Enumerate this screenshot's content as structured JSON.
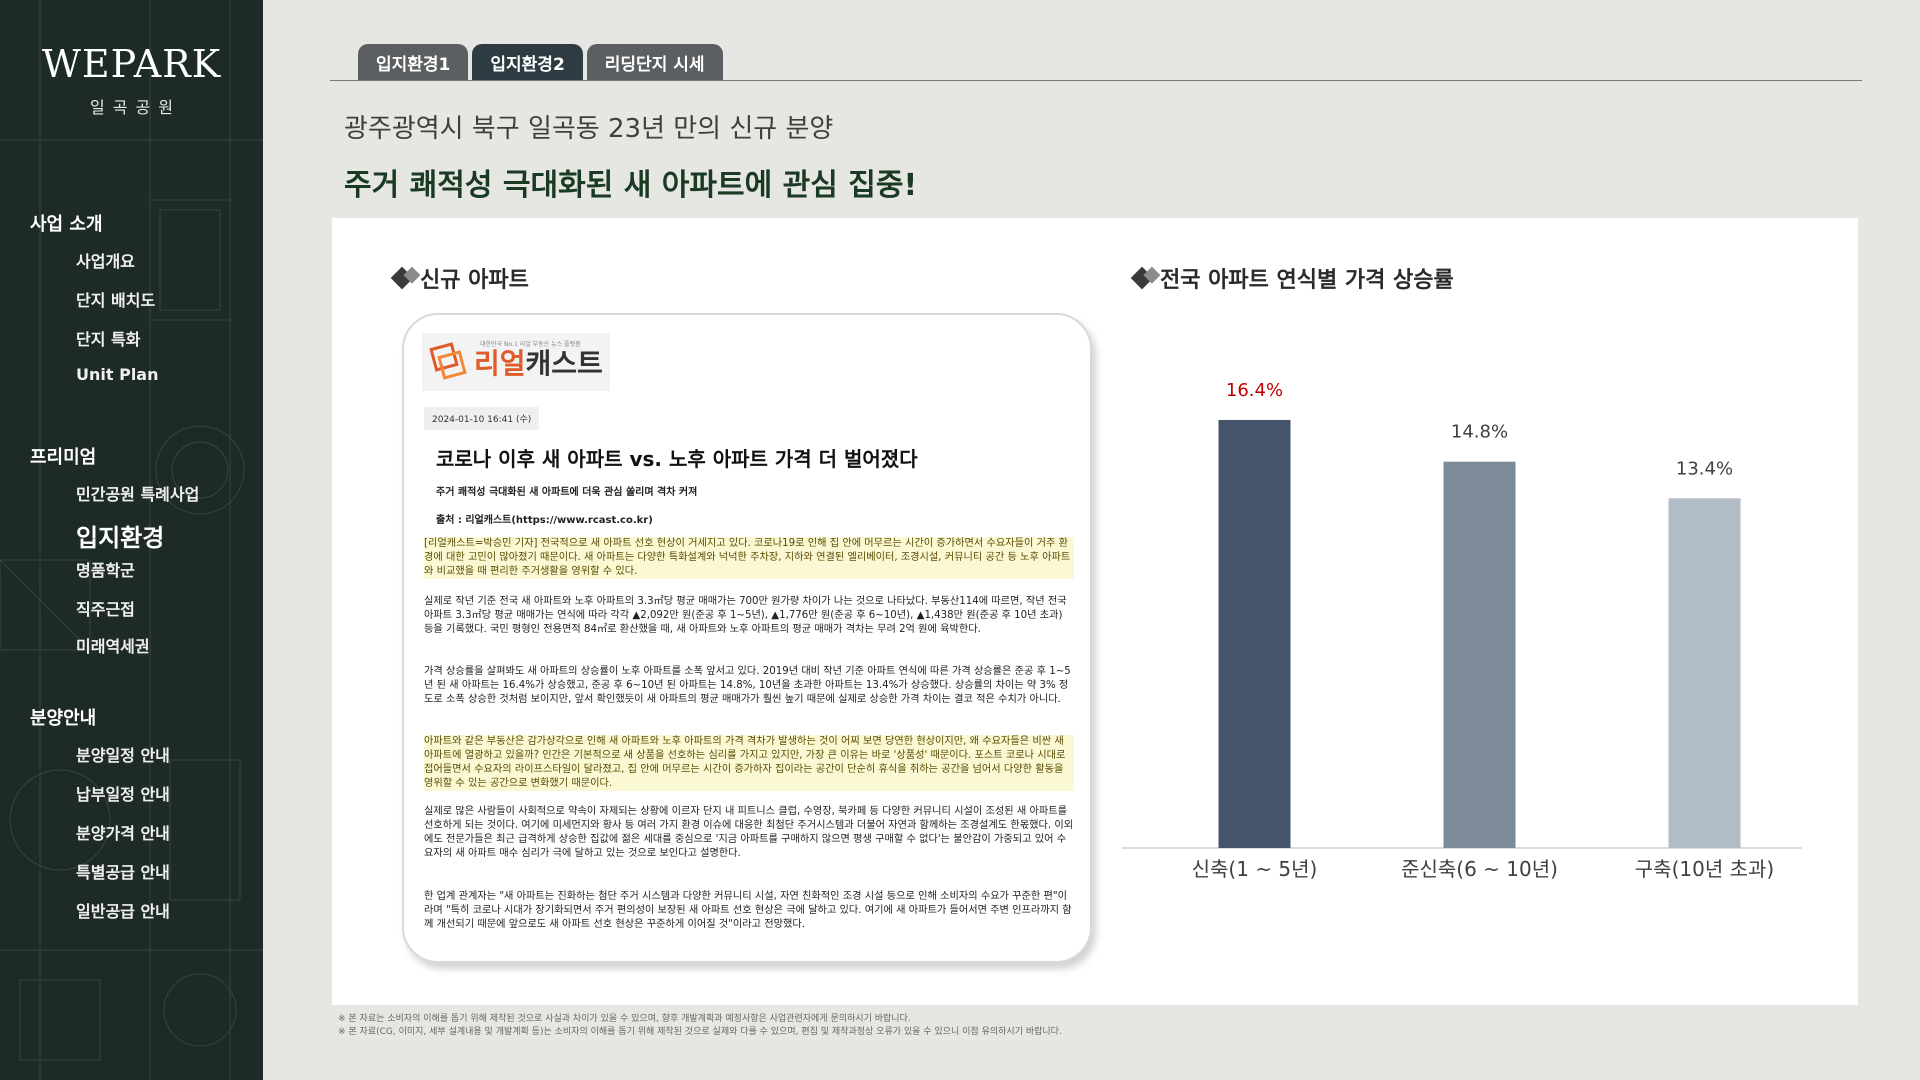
{
  "sidebar": {
    "brand": "WEPARK",
    "brand_sub": "일곡공원",
    "sections": [
      {
        "title": "사업 소개",
        "items": [
          "사업개요",
          "단지 배치도",
          "단지 특화",
          "Unit Plan"
        ]
      },
      {
        "title": "프리미엄",
        "items": [
          "민간공원 특례사업",
          "입지환경",
          "명품학군",
          "직주근접",
          "미래역세권"
        ]
      },
      {
        "title": "분양안내",
        "items": [
          "분양일정 안내",
          "납부일정 안내",
          "분양가격 안내",
          "특별공급 안내",
          "일반공급 안내"
        ]
      }
    ],
    "active_item": "입지환경"
  },
  "tabs": [
    {
      "label": "입지환경1",
      "active": false
    },
    {
      "label": "입지환경2",
      "active": true
    },
    {
      "label": "리딩단지 시세",
      "active": false
    }
  ],
  "headline": {
    "line1": "광주광역시 북구 일곡동 23년 만의 신규 분양",
    "line2": "주거 쾌적성 극대화된 새 아파트에 관심 집중!"
  },
  "left_section": {
    "title": "신규 아파트",
    "article": {
      "logo_text_a": "리얼",
      "logo_text_b": "캐스트",
      "logo_tagline": "대한민국 No.1 리얼 부동산 뉴스 플랫폼",
      "date": "2024-01-10 16:41 (수)",
      "title": "코로나 이후 새 아파트 vs. 노후 아파트 가격 더 벌어졌다",
      "subtitle": "주거 쾌적성 극대화된 새 아파트에 더욱 관심 쏠리며 격차 커져",
      "source": "출처 : 리얼캐스트(https://www.rcast.co.kr)",
      "paragraphs": [
        {
          "text": "[리얼캐스트=박승민 기자] 전국적으로 새 아파트 선호 현상이 거세지고 있다. 코로나19로 인해 집 안에 머무르는 시간이 증가하면서 수요자들이 거주 환경에 대한 고민이 많아졌기 때문이다. 새 아파트는 다양한 특화설계와 넉넉한 주차장, 지하와 연결된 엘리베이터, 조경시설, 커뮤니티 공간 등 노후 아파트와 비교했을 때 편리한 주거생활을 영위할 수 있다.",
          "highlight": true
        },
        {
          "text": "실제로 작년 기준 전국 새 아파트와 노후 아파트의 3.3㎡당 평균 매매가는 700만 원가량 차이가 나는 것으로 나타났다. 부동산114에 따르면, 작년 전국 아파트 3.3㎡당 평균 매매가는 연식에 따라 각각 ▲2,092만 원(준공 후 1~5년), ▲1,776만 원(준공 후 6~10년), ▲1,438만 원(준공 후 10년 초과) 등을 기록했다. 국민 평형인 전용면적 84㎡로 환산했을 때, 새 아파트와 노후 아파트의 평균 매매가 격차는 무려 2억 원에 육박한다.",
          "highlight": false
        },
        {
          "text": "가격 상승률을 살펴봐도 새 아파트의 상승률이 노후 아파트를 소폭 앞서고 있다. 2019년 대비 작년 기준 아파트 연식에 따른 가격 상승률은 준공 후 1~5년 된 새 아파트는 16.4%가 상승했고, 준공 후 6~10년 된 아파트는 14.8%, 10년을 초과한 아파트는 13.4%가 상승했다. 상승률의 차이는 약 3% 정도로 소폭 상승한 것처럼 보이지만, 앞서 확인했듯이 새 아파트의 평균 매매가가 훨씬 높기 때문에 실제로 상승한 가격 차이는 결코 적은 수치가 아니다.",
          "highlight": false
        },
        {
          "text": "아파트와 같은 부동산은 감가상각으로 인해 새 아파트와 노후 아파트의 가격 격차가 발생하는 것이 어찌 보면 당연한 현상이지만, 왜 수요자들은 비싼 새 아파트에 열광하고 있을까? 인간은 기본적으로 새 상품을 선호하는 심리를 가지고 있지만, 가장 큰 이유는 바로 '상품성' 때문이다. 포스트 코로나 시대로 접어들면서 수요자의 라이프스타일이 달라졌고, 집 안에 머무르는 시간이 증가하자 집이라는 공간이 단순히 휴식을 취하는 공간을 넘어서 다양한 활동을 영위할 수 있는 공간으로 변화했기 때문이다.",
          "highlight": true
        },
        {
          "text": "실제로 많은 사람들이 사회적으로 약속이 자제되는 상황에 이르자 단지 내 피트니스 클럽, 수영장, 북카페 등 다양한 커뮤니티 시설이 조성된 새 아파트를 선호하게 되는 것이다. 여기에 미세먼지와 황사 등 여러 가지 환경 이슈에 대응한 최첨단 주거시스템과 더불어 자연과 함께하는 조경설계도 한몫했다. 이외에도 전문가들은 최근 급격하게 상승한 집값에 젊은 세대를 중심으로 '지금 아파트를 구매하지 않으면 평생 구매할 수 없다'는 불안감이 가중되고 있어 수요자의 새 아파트 매수 심리가 극에 달하고 있는 것으로 보인다고 설명한다.",
          "highlight": false
        },
        {
          "text": "한 업계 관계자는 \"새 아파트는 진화하는 첨단 주거 시스템과 다양한 커뮤니티 시설, 자연 친화적인 조경 시설 등으로 인해 소비자의 수요가 꾸준한 편\"이라며 \"특히 코로나 시대가 장기화되면서 주거 편의성이 보장된 새 아파트 선호 현상은 극에 달하고 있다. 여기에 새 아파트가 들어서면 주변 인프라까지 함께 개선되기 때문에 앞으로도 새 아파트 선호 현상은 꾸준하게 이어질 것\"이라고 전망했다.",
          "highlight": false
        }
      ]
    }
  },
  "right_section": {
    "title": "전국 아파트 연식별 가격 상승률"
  },
  "chart_data": {
    "type": "bar",
    "title": "전국 아파트 연식별 가격 상승률",
    "categories": [
      "신축(1 ~ 5년)",
      "준신축(6 ~ 10년)",
      "구축(10년 초과)"
    ],
    "values": [
      16.4,
      14.8,
      13.4
    ],
    "value_labels": [
      "16.4%",
      "14.8%",
      "13.4%"
    ],
    "colors": [
      "#44546a",
      "#7d8a99",
      "#b1bcc7"
    ],
    "label_colors": [
      "#c00000",
      "#404040",
      "#404040"
    ],
    "ylim": [
      0,
      20
    ],
    "grid": false
  },
  "footnotes": [
    "※ 본 자료는 소비자의 이해를 돕기 위해 제작된 것으로 사실과 차이가 있을 수 있으며, 향후 개발계획과 예정사항은 사업관련자에게 문의하시기 바랍니다.",
    "※ 본 자료(CG, 이미지, 세부 설계내용 및 개발계획 등)는 소비자의 이해를 돕기 위해 제작된 것으로 실제와 다를 수 있으며, 편집 및 제작과정상 오류가 있을 수 있으니 이점 유의하시기 바랍니다."
  ]
}
